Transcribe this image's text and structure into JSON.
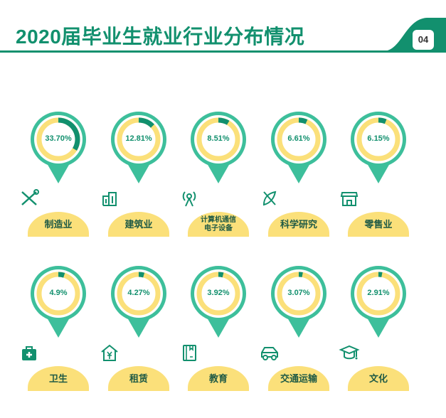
{
  "header": {
    "title": "2020届毕业生就业行业分布情况",
    "page_number": "04"
  },
  "colors": {
    "primary": "#12906e",
    "ring": "#3dbf9b",
    "track": "#fbe07a",
    "label_bg": "#fbe07a"
  },
  "chart_data": {
    "type": "donut",
    "title": "2020届毕业生就业行业分布情况",
    "categories": [
      "制造业",
      "建筑业",
      "计算机通信电子设备",
      "科学研究",
      "零售业",
      "卫生",
      "租赁",
      "教育",
      "交通运输",
      "文化"
    ],
    "values": [
      33.7,
      12.81,
      8.51,
      6.61,
      6.15,
      4.9,
      4.27,
      3.92,
      3.07,
      2.91
    ],
    "unit": "%"
  },
  "items": [
    {
      "label": "制造业",
      "value_text": "33.70%",
      "value": 33.7,
      "icon": "tools-icon"
    },
    {
      "label": "建筑业",
      "value_text": "12.81%",
      "value": 12.81,
      "icon": "building-icon"
    },
    {
      "label": "计算机通信\n电子设备",
      "value_text": "8.51%",
      "value": 8.51,
      "icon": "antenna-icon"
    },
    {
      "label": "科学研究",
      "value_text": "6.61%",
      "value": 6.61,
      "icon": "rocket-icon"
    },
    {
      "label": "零售业",
      "value_text": "6.15%",
      "value": 6.15,
      "icon": "store-icon"
    },
    {
      "label": "卫生",
      "value_text": "4.9%",
      "value": 4.9,
      "icon": "medical-kit-icon"
    },
    {
      "label": "租赁",
      "value_text": "4.27%",
      "value": 4.27,
      "icon": "house-yen-icon"
    },
    {
      "label": "教育",
      "value_text": "3.92%",
      "value": 3.92,
      "icon": "book-icon"
    },
    {
      "label": "交通运输",
      "value_text": "3.07%",
      "value": 3.07,
      "icon": "car-icon"
    },
    {
      "label": "文化",
      "value_text": "2.91%",
      "value": 2.91,
      "icon": "graduation-cap-icon"
    }
  ]
}
